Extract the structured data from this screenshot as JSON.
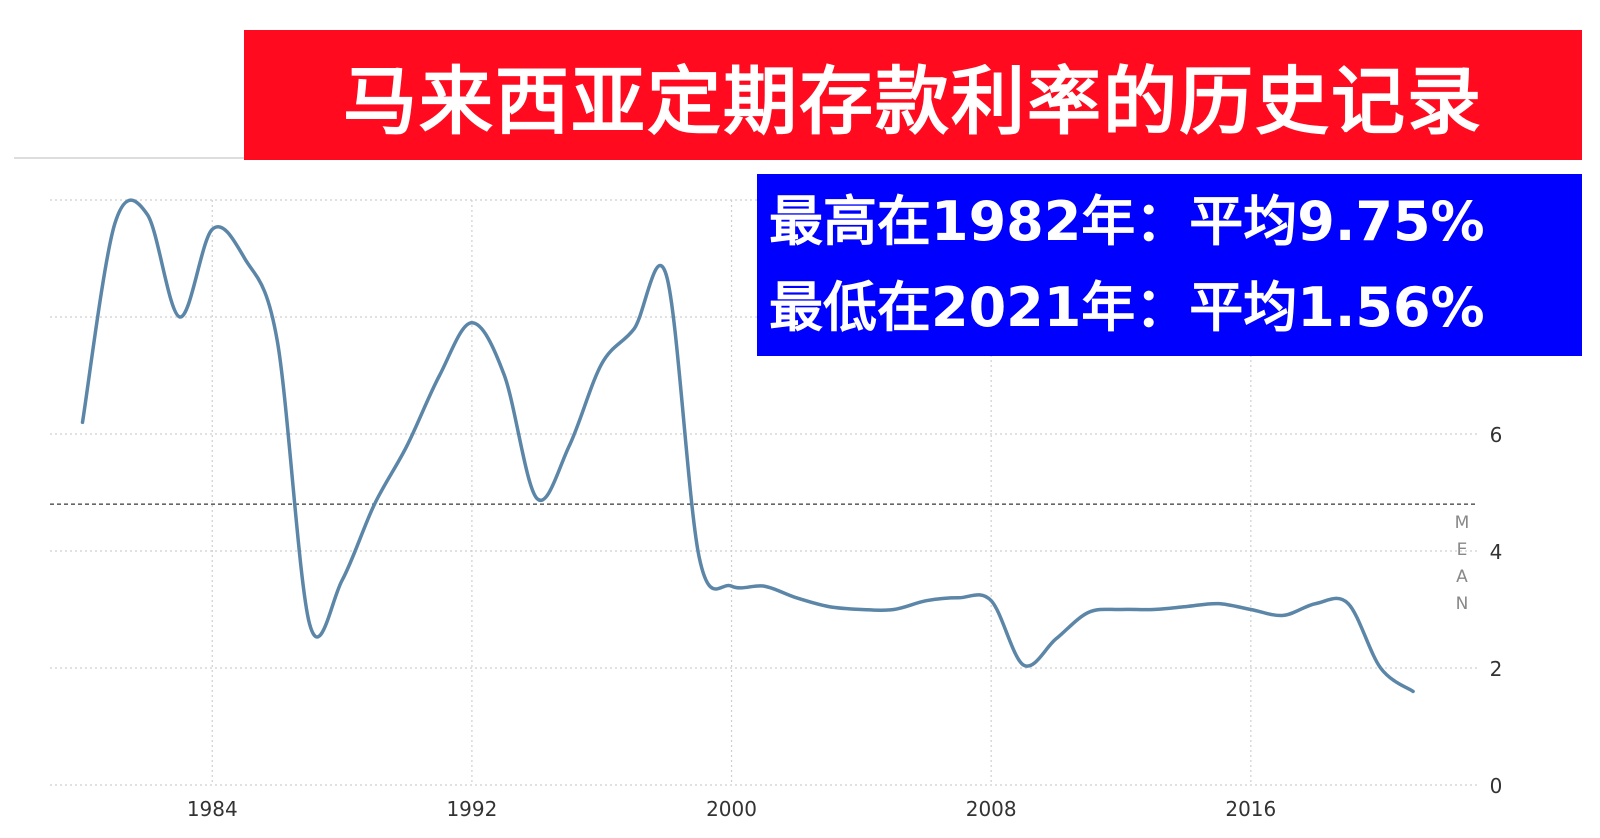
{
  "title": "马来西亚定期存款利率的历史记录",
  "annotations": [
    "最高在1982年：平均9.75%",
    "最低在2021年：平均1.56%"
  ],
  "chart_data": {
    "type": "line",
    "xlim": [
      1979,
      2023
    ],
    "ylim": [
      0,
      10
    ],
    "x_ticks": [
      1984,
      1992,
      2000,
      2008,
      2016
    ],
    "y_ticks": [
      0,
      2,
      4,
      6
    ],
    "grid": true,
    "line_color": "#5b86a8",
    "mean": 4.8,
    "mean_label": [
      "M",
      "E",
      "A",
      "N"
    ],
    "series": [
      {
        "x": [
          1980,
          1981,
          1982,
          1983,
          1984,
          1985,
          1986,
          1987,
          1988,
          1989,
          1990,
          1991,
          1992,
          1993,
          1994,
          1995,
          1996,
          1997,
          1998,
          1999,
          2000,
          2001,
          2002,
          2003,
          2004,
          2005,
          2006,
          2007,
          2008,
          2009,
          2010,
          2011,
          2012,
          2013,
          2014,
          2015,
          2016,
          2017,
          2018,
          2019,
          2020,
          2021
        ],
        "y": [
          6.2,
          9.6,
          9.75,
          8.0,
          9.5,
          9.0,
          7.6,
          2.75,
          3.5,
          4.8,
          5.8,
          7.0,
          7.9,
          7.0,
          4.9,
          5.8,
          7.2,
          7.8,
          8.7,
          3.9,
          3.4,
          3.4,
          3.2,
          3.05,
          3.0,
          3.0,
          3.15,
          3.2,
          3.15,
          2.05,
          2.5,
          2.95,
          3.0,
          3.0,
          3.05,
          3.1,
          3.0,
          2.9,
          3.1,
          3.1,
          2.0,
          1.6
        ]
      }
    ]
  }
}
